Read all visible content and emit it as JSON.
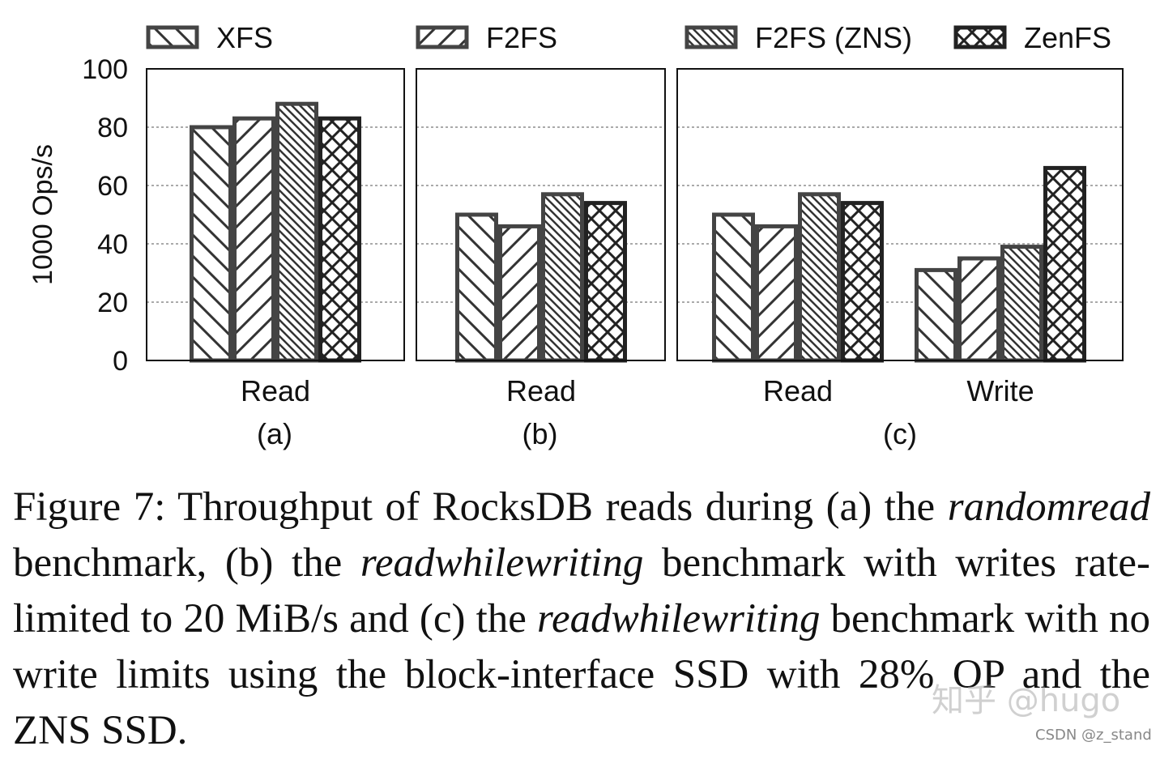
{
  "chart_data": {
    "type": "bar",
    "ylabel": "1000 Ops/s",
    "ylim": [
      0,
      100
    ],
    "yticks": [
      0,
      20,
      40,
      60,
      80,
      100
    ],
    "grid": "horizontal dashed",
    "legend": {
      "placement": "top",
      "entries": [
        {
          "name": "XFS",
          "pattern": "diagonal-backslash"
        },
        {
          "name": "F2FS",
          "pattern": "diagonal-slash"
        },
        {
          "name": "F2FS (ZNS)",
          "pattern": "dense-backslash"
        },
        {
          "name": "ZenFS",
          "pattern": "crosshatch"
        }
      ]
    },
    "panels": [
      {
        "label": "(a)",
        "groups": [
          {
            "category": "Read",
            "values": [
              80,
              83,
              88,
              83
            ]
          }
        ]
      },
      {
        "label": "(b)",
        "groups": [
          {
            "category": "Read",
            "values": [
              50,
              46,
              57,
              54
            ]
          }
        ]
      },
      {
        "label": "(c)",
        "groups": [
          {
            "category": "Read",
            "values": [
              50,
              46,
              57,
              54
            ]
          },
          {
            "category": "Write",
            "values": [
              31,
              35,
              39,
              66
            ]
          }
        ]
      }
    ]
  },
  "caption": {
    "figure_label": "Figure 7:",
    "text_1": " Throughput of RocksDB reads during (a) the ",
    "italic_1": "randomread",
    "text_2": " benchmark, (b) the ",
    "italic_2": "readwhilewriting",
    "text_3": " benchmark with writes rate-limited to 20 MiB/s and (c) the ",
    "italic_3": "readwhilewriting",
    "text_4": " benchmark with no write limits using the block-interface SSD with 28% OP and the ZNS SSD."
  },
  "watermarks": {
    "zhihu": "知乎 @hugo",
    "csdn": "CSDN @z_stand"
  }
}
